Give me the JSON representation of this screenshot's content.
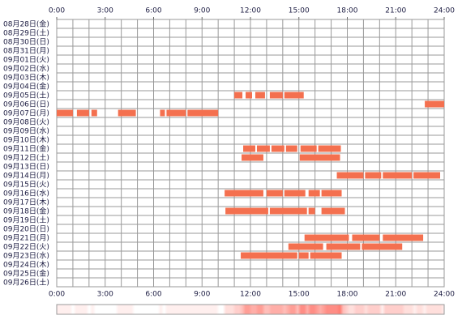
{
  "chart_data": {
    "type": "timeline",
    "categories": [
      "08月28日(金)",
      "08月29日(土)",
      "08月30日(日)",
      "08月31日(月)",
      "09月01日(火)",
      "09月02日(水)",
      "09月03日(木)",
      "09月04日(金)",
      "09月05日(土)",
      "09月06日(日)",
      "09月07日(月)",
      "09月08日(火)",
      "09月09日(水)",
      "09月10日(木)",
      "09月11日(金)",
      "09月12日(土)",
      "09月13日(日)",
      "09月14日(月)",
      "09月15日(火)",
      "09月16日(水)",
      "09月17日(木)",
      "09月18日(金)",
      "09月19日(土)",
      "09月20日(日)",
      "09月21日(月)",
      "09月22日(火)",
      "09月23日(水)",
      "09月24日(木)",
      "09月25日(金)",
      "09月26日(土)"
    ],
    "segments": [
      [],
      [],
      [],
      [],
      [],
      [],
      [],
      [],
      [
        [
          11.0,
          11.5
        ],
        [
          11.7,
          12.1
        ],
        [
          12.3,
          12.9
        ],
        [
          13.2,
          14.0
        ],
        [
          14.1,
          15.3
        ]
      ],
      [
        [
          22.8,
          24.0
        ]
      ],
      [
        [
          0,
          1.0
        ],
        [
          1.25,
          2.0
        ],
        [
          2.15,
          2.5
        ],
        [
          3.8,
          4.9
        ],
        [
          6.4,
          6.7
        ],
        [
          6.8,
          8.0
        ],
        [
          8.1,
          10.0
        ]
      ],
      [],
      [],
      [],
      [
        [
          11.55,
          12.3
        ],
        [
          12.4,
          13.2
        ],
        [
          13.3,
          14.1
        ],
        [
          14.2,
          14.9
        ],
        [
          15.1,
          16.1
        ],
        [
          16.2,
          17.6
        ]
      ],
      [
        [
          11.45,
          12.8
        ],
        [
          15.05,
          17.55
        ]
      ],
      [],
      [
        [
          17.35,
          19.0
        ],
        [
          19.1,
          20.1
        ],
        [
          20.2,
          22.0
        ],
        [
          22.1,
          23.75
        ]
      ],
      [],
      [
        [
          10.4,
          12.8
        ],
        [
          13.0,
          14.0
        ],
        [
          14.1,
          15.4
        ],
        [
          15.6,
          16.3
        ],
        [
          16.4,
          17.65
        ]
      ],
      [],
      [
        [
          10.45,
          13.1
        ],
        [
          13.2,
          15.5
        ],
        [
          15.6,
          16.0
        ],
        [
          16.4,
          17.85
        ]
      ],
      [],
      [],
      [
        [
          15.35,
          18.1
        ],
        [
          18.3,
          20.0
        ],
        [
          20.2,
          22.7
        ]
      ],
      [
        [
          14.35,
          16.5
        ],
        [
          16.7,
          18.8
        ],
        [
          18.9,
          21.4
        ]
      ],
      [
        [
          11.4,
          14.9
        ],
        [
          15.0,
          15.6
        ],
        [
          15.7,
          17.65
        ]
      ],
      [],
      [],
      []
    ],
    "color": "#f4704f",
    "xlim": [
      0,
      24
    ],
    "xticks": [
      {
        "value": 0,
        "label": "0:00"
      },
      {
        "value": 3,
        "label": "3:00"
      },
      {
        "value": 6,
        "label": "6:00"
      },
      {
        "value": 9,
        "label": "9:00"
      },
      {
        "value": 12,
        "label": "12:00"
      },
      {
        "value": 15,
        "label": "15:00"
      },
      {
        "value": 18,
        "label": "18:00"
      },
      {
        "value": 21,
        "label": "21:00"
      },
      {
        "value": 24,
        "label": "24:00"
      }
    ],
    "xgrid": [
      0,
      1,
      2,
      3,
      4,
      5,
      6,
      7,
      8,
      9,
      10,
      11,
      12,
      13,
      14,
      15,
      16,
      17,
      18,
      19,
      20,
      21,
      22,
      23,
      24
    ]
  }
}
